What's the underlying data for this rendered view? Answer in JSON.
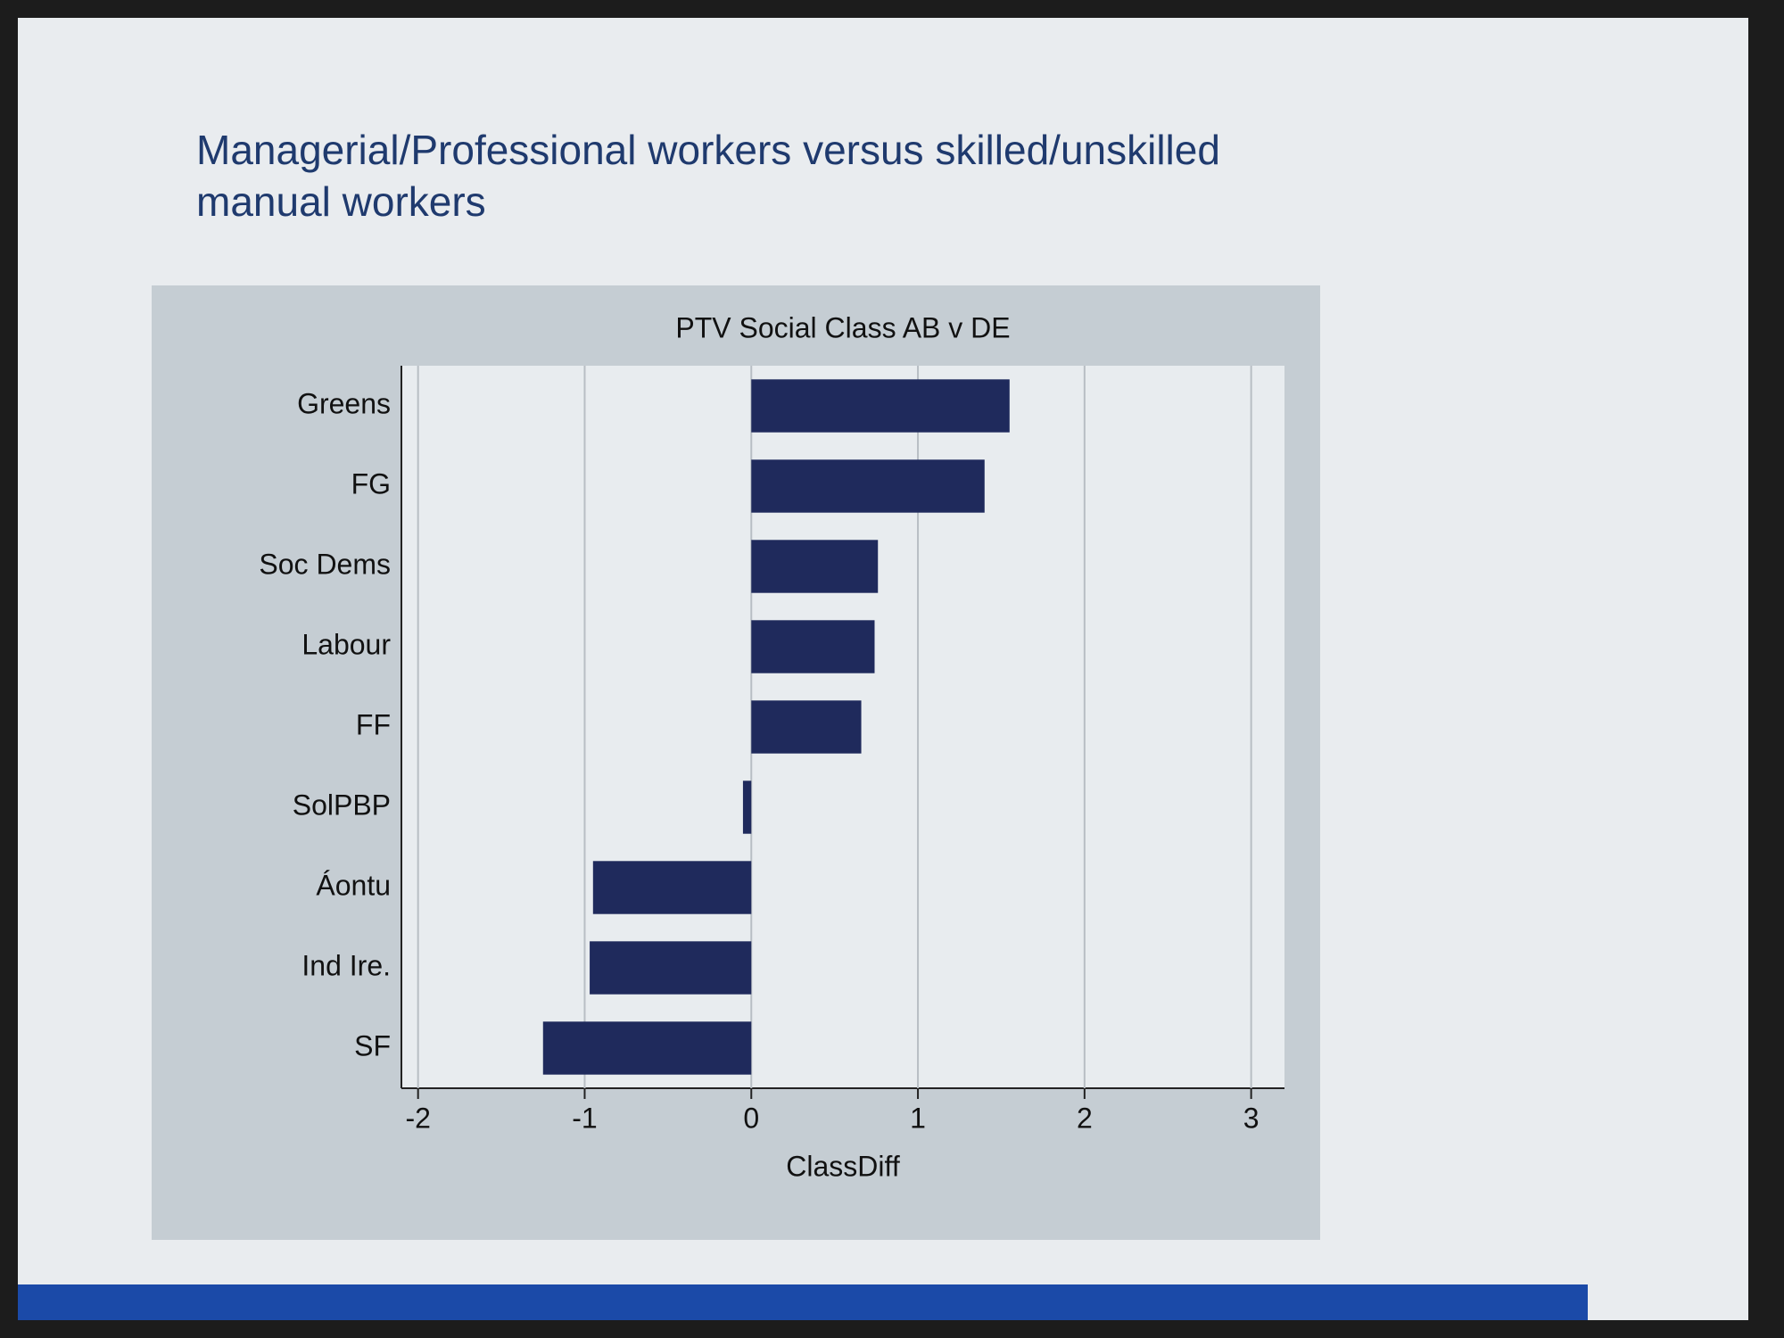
{
  "slide_title": "Managerial/Professional workers versus skilled/unskilled manual workers",
  "chart_data": {
    "type": "barh",
    "title": "PTV Social Class AB v DE",
    "xlabel": "ClassDiff",
    "categories": [
      "Greens",
      "FG",
      "Soc Dems",
      "Labour",
      "FF",
      "SolPBP",
      "Áontu",
      "Ind Ire.",
      "SF"
    ],
    "values": [
      1.55,
      1.4,
      0.76,
      0.74,
      0.66,
      -0.05,
      -0.95,
      -0.97,
      -1.25
    ],
    "color": "#1f2a5c",
    "xlim": [
      -2.1,
      3.2
    ],
    "xticks": [
      -2,
      -1,
      0,
      1,
      2,
      3
    ],
    "grid": true
  }
}
